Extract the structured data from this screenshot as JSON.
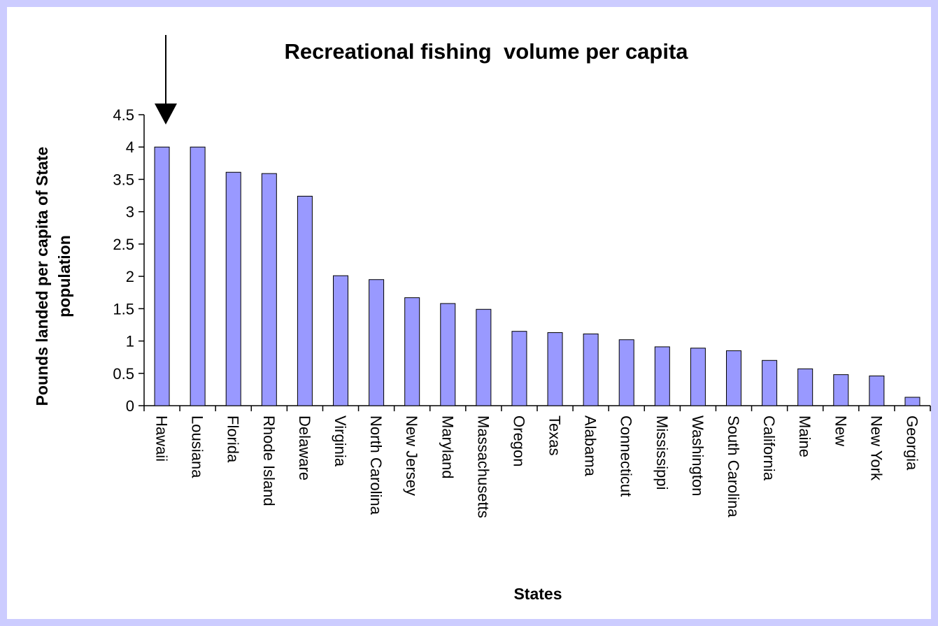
{
  "chart_data": {
    "type": "bar",
    "title": "Recreational fishing  volume per capita",
    "xlabel": "States",
    "ylabel_lines": [
      "Pounds landed per capita of State",
      "population"
    ],
    "ylim": [
      0,
      4.5
    ],
    "yticks": [
      "0",
      "0.5",
      "1",
      "1.5",
      "2",
      "2.5",
      "3",
      "3.5",
      "4",
      "4.5"
    ],
    "categories": [
      "Hawaii",
      "Lousiana",
      "Florida",
      "Rhode Island",
      "Delaware",
      "Virginia",
      "North Carolina",
      "New Jersey",
      "Maryland",
      "Massachusetts",
      "Oregon",
      "Texas",
      "Alabama",
      "Connecticut",
      "Mississippi",
      "Washington",
      "South Carolina",
      "California",
      "Maine",
      "New",
      "New York",
      "Georgia"
    ],
    "values": [
      4.0,
      4.0,
      3.61,
      3.59,
      3.24,
      2.01,
      1.95,
      1.67,
      1.58,
      1.49,
      1.15,
      1.13,
      1.11,
      1.02,
      0.91,
      0.89,
      0.85,
      0.7,
      0.57,
      0.48,
      0.46,
      0.13
    ],
    "bar_color": "#9999ff",
    "grid": false,
    "legend": "none",
    "annotation": "arrow pointing down to Hawaii bar"
  }
}
